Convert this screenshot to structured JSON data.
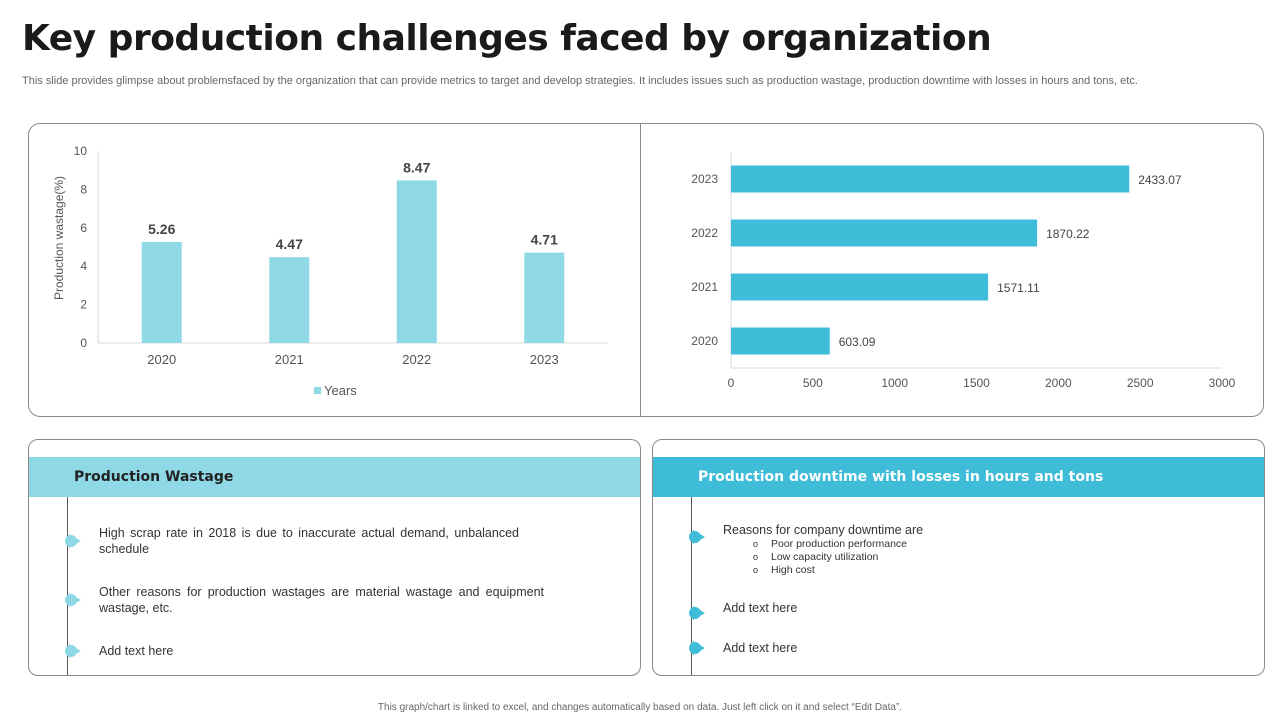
{
  "title": "Key production challenges faced by organization",
  "subtitle": "This slide provides glimpse about problemsfaced by the organization that can provide metrics to target and develop strategies. It includes issues such as production wastage, production downtime with losses in hours and tons, etc.",
  "colors": {
    "bar_light": "#8fd8e6",
    "bar_dark": "#3fbcd8",
    "axis": "#d9d9d9",
    "text": "#555555"
  },
  "chart_data": [
    {
      "type": "bar",
      "title": "",
      "categories": [
        "2020",
        "2021",
        "2022",
        "2023"
      ],
      "series": [
        {
          "name": "Years",
          "values": [
            5.26,
            4.47,
            8.47,
            4.71
          ]
        }
      ],
      "data_labels": [
        "5.26",
        "4.47",
        "8.47",
        "4.71"
      ],
      "xlabel": "",
      "ylabel": "Production wastage(%)",
      "ylim": [
        0,
        10
      ],
      "yticks": [
        "0",
        "2",
        "4",
        "6",
        "8",
        "10"
      ],
      "legend": "bottom",
      "grid": false
    },
    {
      "type": "bar",
      "orientation": "horizontal",
      "title": "",
      "categories": [
        "2020",
        "2021",
        "2022",
        "2023"
      ],
      "series": [
        {
          "name": "",
          "values": [
            603.09,
            1571.11,
            1870.22,
            2433.07
          ]
        }
      ],
      "data_labels": [
        "603.09",
        "1571.11",
        "1870.22",
        "2433.07"
      ],
      "xlim": [
        0,
        3000
      ],
      "xticks": [
        "0",
        "500",
        "1000",
        "1500",
        "2000",
        "2500",
        "3000"
      ],
      "legend": "none",
      "grid": false
    }
  ],
  "panels": {
    "left": {
      "header": "Production Wastage",
      "items": [
        "High scrap rate in 2018 is due to inaccurate actual demand, unbalanced schedule",
        "Other reasons for production wastages are material wastage and equipment wastage, etc.",
        "Add text here"
      ]
    },
    "right": {
      "header": "Production downtime with losses in hours and tons",
      "items": [
        {
          "text": "Reasons for company downtime are",
          "sub": [
            "Poor production performance",
            "Low capacity utilization",
            "High cost"
          ]
        },
        {
          "text": "Add text here"
        },
        {
          "text": "Add text here"
        }
      ]
    }
  },
  "footer": "This graph/chart is linked to excel, and changes automatically based on data. Just left click on it and select “Edit Data”."
}
